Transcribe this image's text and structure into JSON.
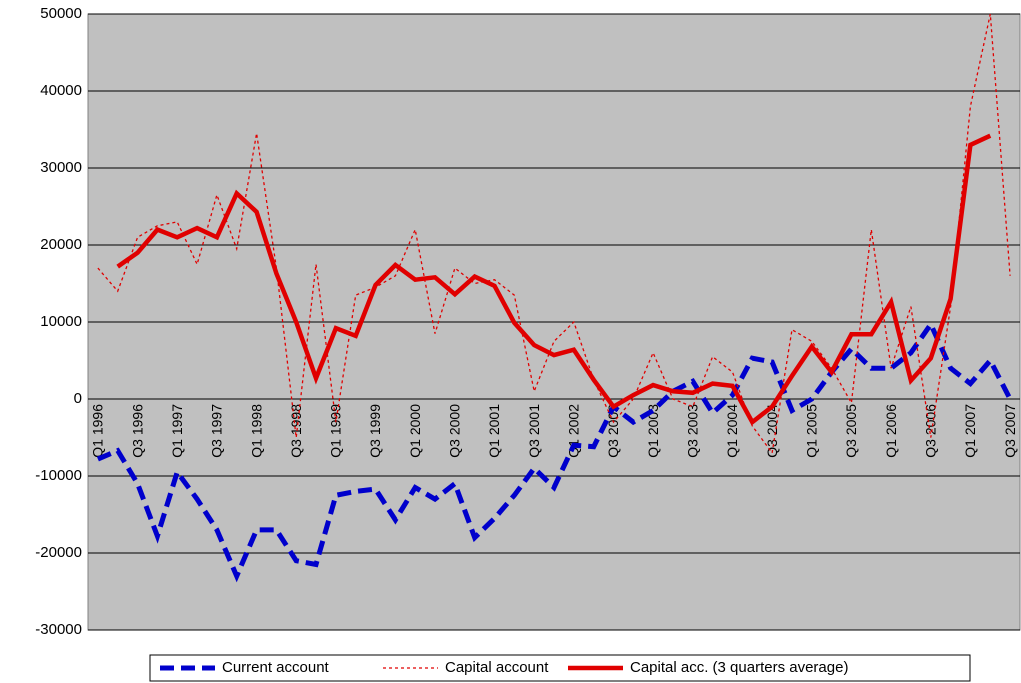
{
  "chart_data": {
    "type": "line",
    "categories": [
      "Q1 1996",
      null,
      "Q3 1996",
      null,
      "Q1 1997",
      null,
      "Q3 1997",
      null,
      "Q1 1998",
      null,
      "Q3 1998",
      null,
      "Q1 1999",
      null,
      "Q3 1999",
      null,
      "Q1 2000",
      null,
      "Q3 2000",
      null,
      "Q1 2001",
      null,
      "Q3 2001",
      null,
      "Q1 2002",
      null,
      "Q3 2002",
      null,
      "Q1 2003",
      null,
      "Q3 2003",
      null,
      "Q1 2004",
      null,
      "Q3 2004",
      null,
      "Q1 2005",
      null,
      "Q3 2005",
      null,
      "Q1 2006",
      null,
      "Q3 2006",
      null,
      "Q1 2007",
      null,
      "Q3 2007"
    ],
    "series": [
      {
        "name": "Current account",
        "color": "#0000cc",
        "line_style": "dashed",
        "values": [
          -7800,
          -6700,
          -11000,
          -17800,
          -9500,
          -13000,
          -17000,
          -23000,
          -17000,
          -17000,
          -21000,
          -21500,
          -12500,
          -12000,
          -11700,
          -15700,
          -11500,
          -13000,
          -11000,
          -18000,
          -15500,
          -12500,
          -9000,
          -11500,
          -6000,
          -6200,
          -1000,
          -3000,
          -1500,
          1000,
          2300,
          -1800,
          500,
          5300,
          4800,
          -1500,
          0,
          3500,
          6500,
          4000,
          4000,
          6000,
          9700,
          4000,
          2000,
          5000,
          0
        ]
      },
      {
        "name": "Capital account",
        "color": "#e00000",
        "line_style": "dotted",
        "values": [
          17000,
          14000,
          21000,
          22500,
          23000,
          17500,
          26500,
          19500,
          34500,
          17000,
          -5000,
          17500,
          -3000,
          13500,
          14500,
          16000,
          22000,
          8500,
          17000,
          15000,
          15500,
          13500,
          1000,
          7500,
          10000,
          2500,
          -3000,
          0,
          6000,
          0,
          -1000,
          5500,
          3500,
          -3500,
          -7000,
          9000,
          7500,
          4000,
          -500,
          22000,
          4000,
          12000,
          -5000,
          12000,
          38000,
          50000,
          16000
        ]
      },
      {
        "name": "Capital acc. (3 quarters average)",
        "color": "#e00000",
        "line_style": "solid",
        "values": [
          null,
          17200,
          19000,
          22000,
          21000,
          22200,
          21000,
          26700,
          24300,
          16300,
          10000,
          2700,
          9200,
          8200,
          14800,
          17400,
          15500,
          15800,
          13600,
          15900,
          14700,
          9900,
          7000,
          5700,
          6400,
          2500,
          -1000,
          500,
          1800,
          1000,
          800,
          2000,
          1700,
          -3000,
          -1000,
          3000,
          6800,
          3500,
          8400,
          8400,
          12600,
          2400,
          5300,
          13000,
          33000,
          34200,
          null
        ]
      }
    ],
    "ylim": [
      -30000,
      50000
    ],
    "yticks": [
      -30000,
      -20000,
      -10000,
      0,
      10000,
      20000,
      30000,
      40000,
      50000
    ],
    "grid": true,
    "legend": "bottom"
  }
}
